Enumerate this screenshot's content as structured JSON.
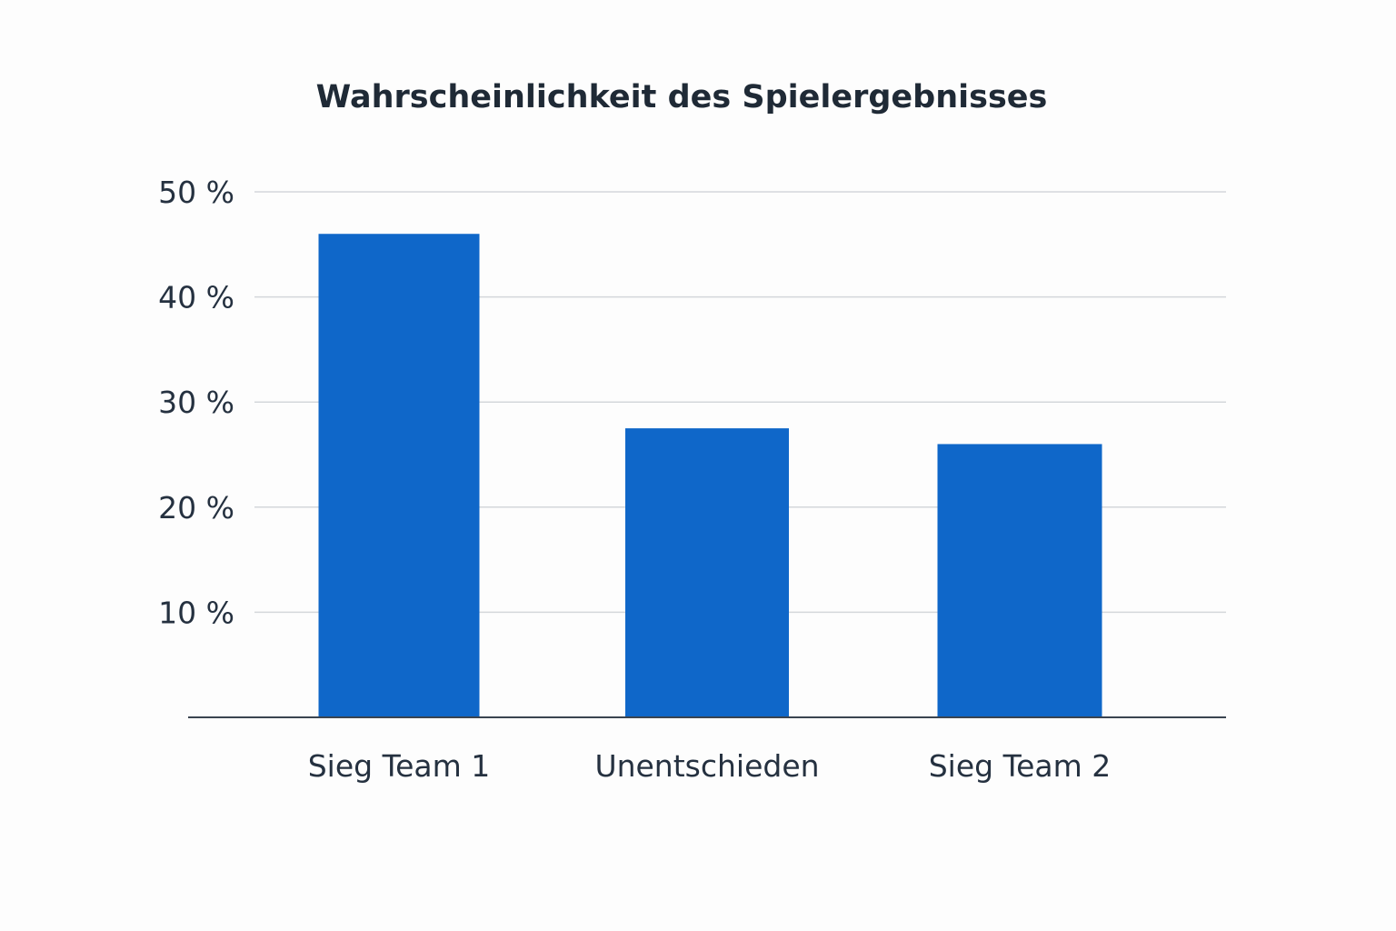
{
  "chart_data": {
    "type": "bar",
    "title": "Wahrscheinlichkeit des Spielergebnisses",
    "xlabel": "",
    "ylabel": "",
    "categories": [
      "Sieg Team 1",
      "Unentschieden",
      "Sieg Team 2"
    ],
    "values": [
      46,
      27.5,
      26
    ],
    "unit": "%",
    "ylim": [
      0,
      50
    ],
    "yticks": [
      10,
      20,
      30,
      40,
      50
    ],
    "ytick_labels": [
      "10 %",
      "20 %",
      "30 %",
      "40 %",
      "50 %"
    ],
    "grid": true,
    "legend": "none",
    "colors": {
      "bar": "#0f67c9",
      "text": "#1f2a36",
      "grid": "#d4d7db"
    }
  }
}
